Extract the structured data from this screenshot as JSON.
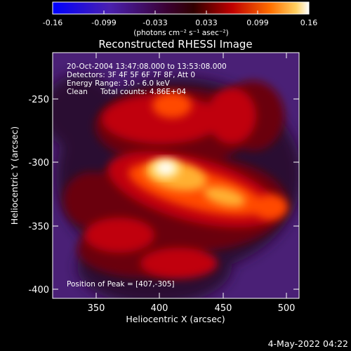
{
  "colorbar": {
    "tick_labels": [
      "-0.16",
      "-0.099",
      "-0.033",
      "0.033",
      "0.099",
      "0.16"
    ],
    "range": [
      -0.16,
      0.16
    ],
    "unit_label": "(photons cm⁻² s⁻¹ asec⁻²)"
  },
  "title": "Reconstructed RHESSI Image",
  "annotations": {
    "time_range": "20-Oct-2004 13:47:08.000 to 13:53:08.000",
    "detectors": "Detectors: 3F 4F 5F 6F 7F 8F, Att 0",
    "energy_range": "Energy Range: 3.0 - 6.0 keV",
    "method": "Clean",
    "total_counts": "Total counts: 4.86E+04",
    "peak_position": "Position of Peak = [407,-305]"
  },
  "axes": {
    "xlabel": "Heliocentric X (arcsec)",
    "ylabel": "Heliocentric Y (arcsec)",
    "xlim": [
      316,
      426
    ],
    "ylim": [
      -407,
      -205
    ],
    "x_ticks": [
      "350",
      "400",
      "450",
      "500"
    ],
    "y_ticks": [
      "-250",
      "-300",
      "-350",
      "-400"
    ]
  },
  "footer": {
    "timestamp": "4-May-2022 04:22"
  },
  "image_features": {
    "colormap": [
      "#0000ff",
      "#7a1fa8",
      "#300000",
      "#b00000",
      "#ff5000",
      "#ffc040",
      "#ffffff"
    ],
    "background_color": "#4a2076",
    "peak_color": "#ffffff"
  }
}
